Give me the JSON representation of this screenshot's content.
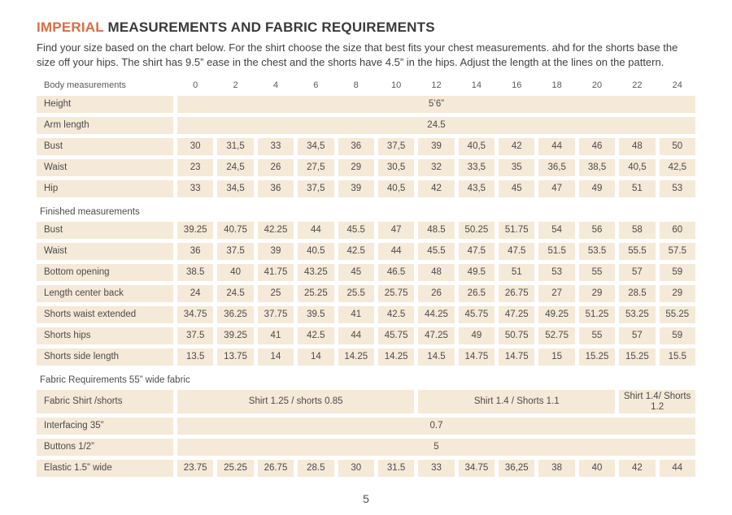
{
  "title": {
    "highlight": "IMPERIAL",
    "rest": " MEASUREMENTS AND FABRIC REQUIREMENTS"
  },
  "intro": "Find your size based on the chart below. For the shirt choose the size that best fits your chest measurements.  ahd for the shorts base the size off your hips. The shirt  has 9.5” ease in the chest and the shorts have 4.5” in the hips. Adjust the length at the lines on the pattern.",
  "page_number": "5",
  "colors": {
    "accent": "#D96F46",
    "cell_background": "#F5E9D8",
    "text": "#4B4B4B"
  },
  "table": {
    "header": {
      "label": "Body measurements",
      "sizes": [
        "0",
        "2",
        "4",
        "6",
        "8",
        "10",
        "12",
        "14",
        "16",
        "18",
        "20",
        "22",
        "24"
      ]
    },
    "rows": [
      {
        "type": "span",
        "label": "Height",
        "value": "5’6”"
      },
      {
        "type": "span",
        "label": "Arm length",
        "value": "24.5"
      },
      {
        "type": "cells",
        "label": "Bust",
        "values": [
          "30",
          "31,5",
          "33",
          "34,5",
          "36",
          "37,5",
          "39",
          "40,5",
          "42",
          "44",
          "46",
          "48",
          "50"
        ]
      },
      {
        "type": "cells",
        "label": "Waist",
        "values": [
          "23",
          "24,5",
          "26",
          "27,5",
          "29",
          "30,5",
          "32",
          "33,5",
          "35",
          "36,5",
          "38,5",
          "40,5",
          "42,5"
        ]
      },
      {
        "type": "cells",
        "label": "Hip",
        "values": [
          "33",
          "34,5",
          "36",
          "37,5",
          "39",
          "40,5",
          "42",
          "43,5",
          "45",
          "47",
          "49",
          "51",
          "53"
        ]
      },
      {
        "type": "section",
        "label": "Finished measurements"
      },
      {
        "type": "cells",
        "label": "Bust",
        "values": [
          "39.25",
          "40.75",
          "42.25",
          "44",
          "45.5",
          "47",
          "48.5",
          "50.25",
          "51.75",
          "54",
          "56",
          "58",
          "60"
        ]
      },
      {
        "type": "cells",
        "label": "Waist",
        "values": [
          "36",
          "37.5",
          "39",
          "40.5",
          "42.5",
          "44",
          "45.5",
          "47.5",
          "47.5",
          "51.5",
          "53.5",
          "55.5",
          "57.5"
        ]
      },
      {
        "type": "cells",
        "label": "Bottom opening",
        "values": [
          "38.5",
          "40",
          "41.75",
          "43.25",
          "45",
          "46.5",
          "48",
          "49.5",
          "51",
          "53",
          "55",
          "57",
          "59"
        ]
      },
      {
        "type": "cells",
        "label": "Length center back",
        "values": [
          "24",
          "24.5",
          "25",
          "25.25",
          "25.5",
          "25.75",
          "26",
          "26.5",
          "26.75",
          "27",
          "29",
          "28.5",
          "29"
        ]
      },
      {
        "type": "cells",
        "label": "Shorts waist extended",
        "values": [
          "34.75",
          "36.25",
          "37.75",
          "39.5",
          "41",
          "42.5",
          "44.25",
          "45.75",
          "47.25",
          "49.25",
          "51.25",
          "53.25",
          "55.25"
        ]
      },
      {
        "type": "cells",
        "label": "Shorts hips",
        "values": [
          "37.5",
          "39.25",
          "41",
          "42.5",
          "44",
          "45.75",
          "47.25",
          "49",
          "50.75",
          "52.75",
          "55",
          "57",
          "59"
        ]
      },
      {
        "type": "cells",
        "label": "Shorts side length",
        "values": [
          "13.5",
          "13.75",
          "14",
          "14",
          "14.25",
          "14.25",
          "14.5",
          "14.75",
          "14.75",
          "15",
          "15.25",
          "15.25",
          "15.5"
        ]
      },
      {
        "type": "section",
        "label": "Fabric Requirements 55” wide fabric"
      },
      {
        "type": "multispan",
        "label": "Fabric Shirt /shorts",
        "cells": [
          {
            "span": 6,
            "value": "Shirt 1.25 / shorts 0.85"
          },
          {
            "span": 5,
            "value": "Shirt 1.4 /  Shorts 1.1"
          },
          {
            "span": 2,
            "value": "Shirt 1.4/ Shorts 1.2"
          }
        ]
      },
      {
        "type": "span",
        "label": "Interfacing 35”",
        "value": "0.7"
      },
      {
        "type": "span",
        "label": "Buttons 1/2”",
        "value": "5"
      },
      {
        "type": "cells",
        "label": "Elastic 1.5” wide",
        "values": [
          "23.75",
          "25.25",
          "26.75",
          "28.5",
          "30",
          "31.5",
          "33",
          "34.75",
          "36,25",
          "38",
          "40",
          "42",
          "44"
        ]
      }
    ]
  }
}
